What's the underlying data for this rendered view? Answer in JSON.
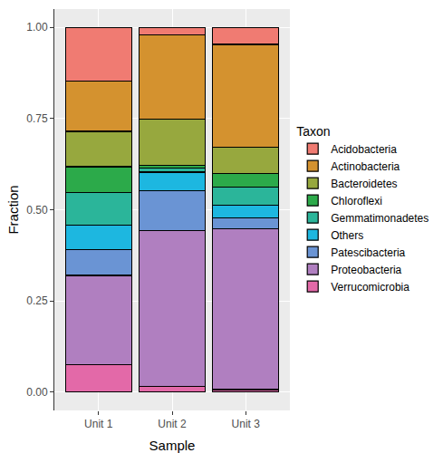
{
  "chart_data": {
    "type": "bar",
    "stacked": true,
    "grid": true,
    "legend": "right",
    "legend_title": "Taxon",
    "x_label": "Sample",
    "y_label": "Fraction",
    "categories": [
      "Unit 1",
      "Unit 2",
      "Unit 3"
    ],
    "ylim": [
      -0.05,
      1.05
    ],
    "yticks": [
      {
        "value": 0,
        "label": "0.00"
      },
      {
        "value": 0.25,
        "label": "0.25"
      },
      {
        "value": 0.5,
        "label": "0.50"
      },
      {
        "value": 0.75,
        "label": "0.75"
      },
      {
        "value": 1,
        "label": "1.00"
      }
    ],
    "series": [
      {
        "name": "Acidobacteria",
        "color": "#F07B72",
        "values": [
          0.148,
          0.02,
          0.047
        ]
      },
      {
        "name": "Actinobacteria",
        "color": "#D4922F",
        "values": [
          0.137,
          0.232,
          0.281
        ]
      },
      {
        "name": "Bacteroidetes",
        "color": "#97A83E",
        "values": [
          0.097,
          0.126,
          0.072
        ]
      },
      {
        "name": "Chloroflexi",
        "color": "#2CAA4A",
        "values": [
          0.07,
          0.007,
          0.038
        ]
      },
      {
        "name": "Gemmatimonadetes",
        "color": "#2BB59A",
        "values": [
          0.091,
          0.012,
          0.05
        ]
      },
      {
        "name": "Others",
        "color": "#1DB7E0",
        "values": [
          0.067,
          0.05,
          0.034
        ]
      },
      {
        "name": "Patescibacteria",
        "color": "#6A94D4",
        "values": [
          0.07,
          0.11,
          0.031
        ]
      },
      {
        "name": "Proteobacteria",
        "color": "#B07FC0",
        "values": [
          0.245,
          0.428,
          0.44
        ]
      },
      {
        "name": "Verrucomicrobia",
        "color": "#E369A8",
        "values": [
          0.075,
          0.015,
          0.007
        ]
      }
    ]
  }
}
